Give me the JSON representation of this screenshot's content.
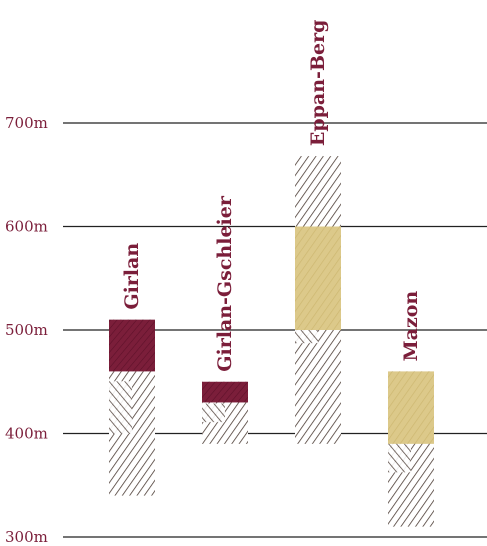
{
  "chart_data": {
    "type": "bar",
    "subtype": "floating-range",
    "ylim": [
      300,
      700
    ],
    "yticks": [
      300,
      400,
      500,
      600,
      700
    ],
    "ytick_labels": [
      "300m",
      "400m",
      "500m",
      "600m",
      "700m"
    ],
    "grid": true,
    "categories": [
      "Girlan",
      "Girlan-Gschleier",
      "Eppan-Berg",
      "Mazon"
    ],
    "series": [
      {
        "name": "",
        "kind": "total-range",
        "pattern": "hatched",
        "color": "#4a3a33",
        "ranges": [
          [
            340,
            510
          ],
          [
            390,
            450
          ],
          [
            390,
            668
          ],
          [
            310,
            460
          ]
        ]
      },
      {
        "name": "",
        "kind": "highlight",
        "ranges": [
          [
            460,
            510
          ],
          [
            430,
            450
          ],
          [
            500,
            600
          ],
          [
            390,
            460
          ]
        ],
        "colors": [
          "#7b1e3a",
          "#7b1e3a",
          "#dcc98a",
          "#dcc98a"
        ]
      }
    ]
  }
}
